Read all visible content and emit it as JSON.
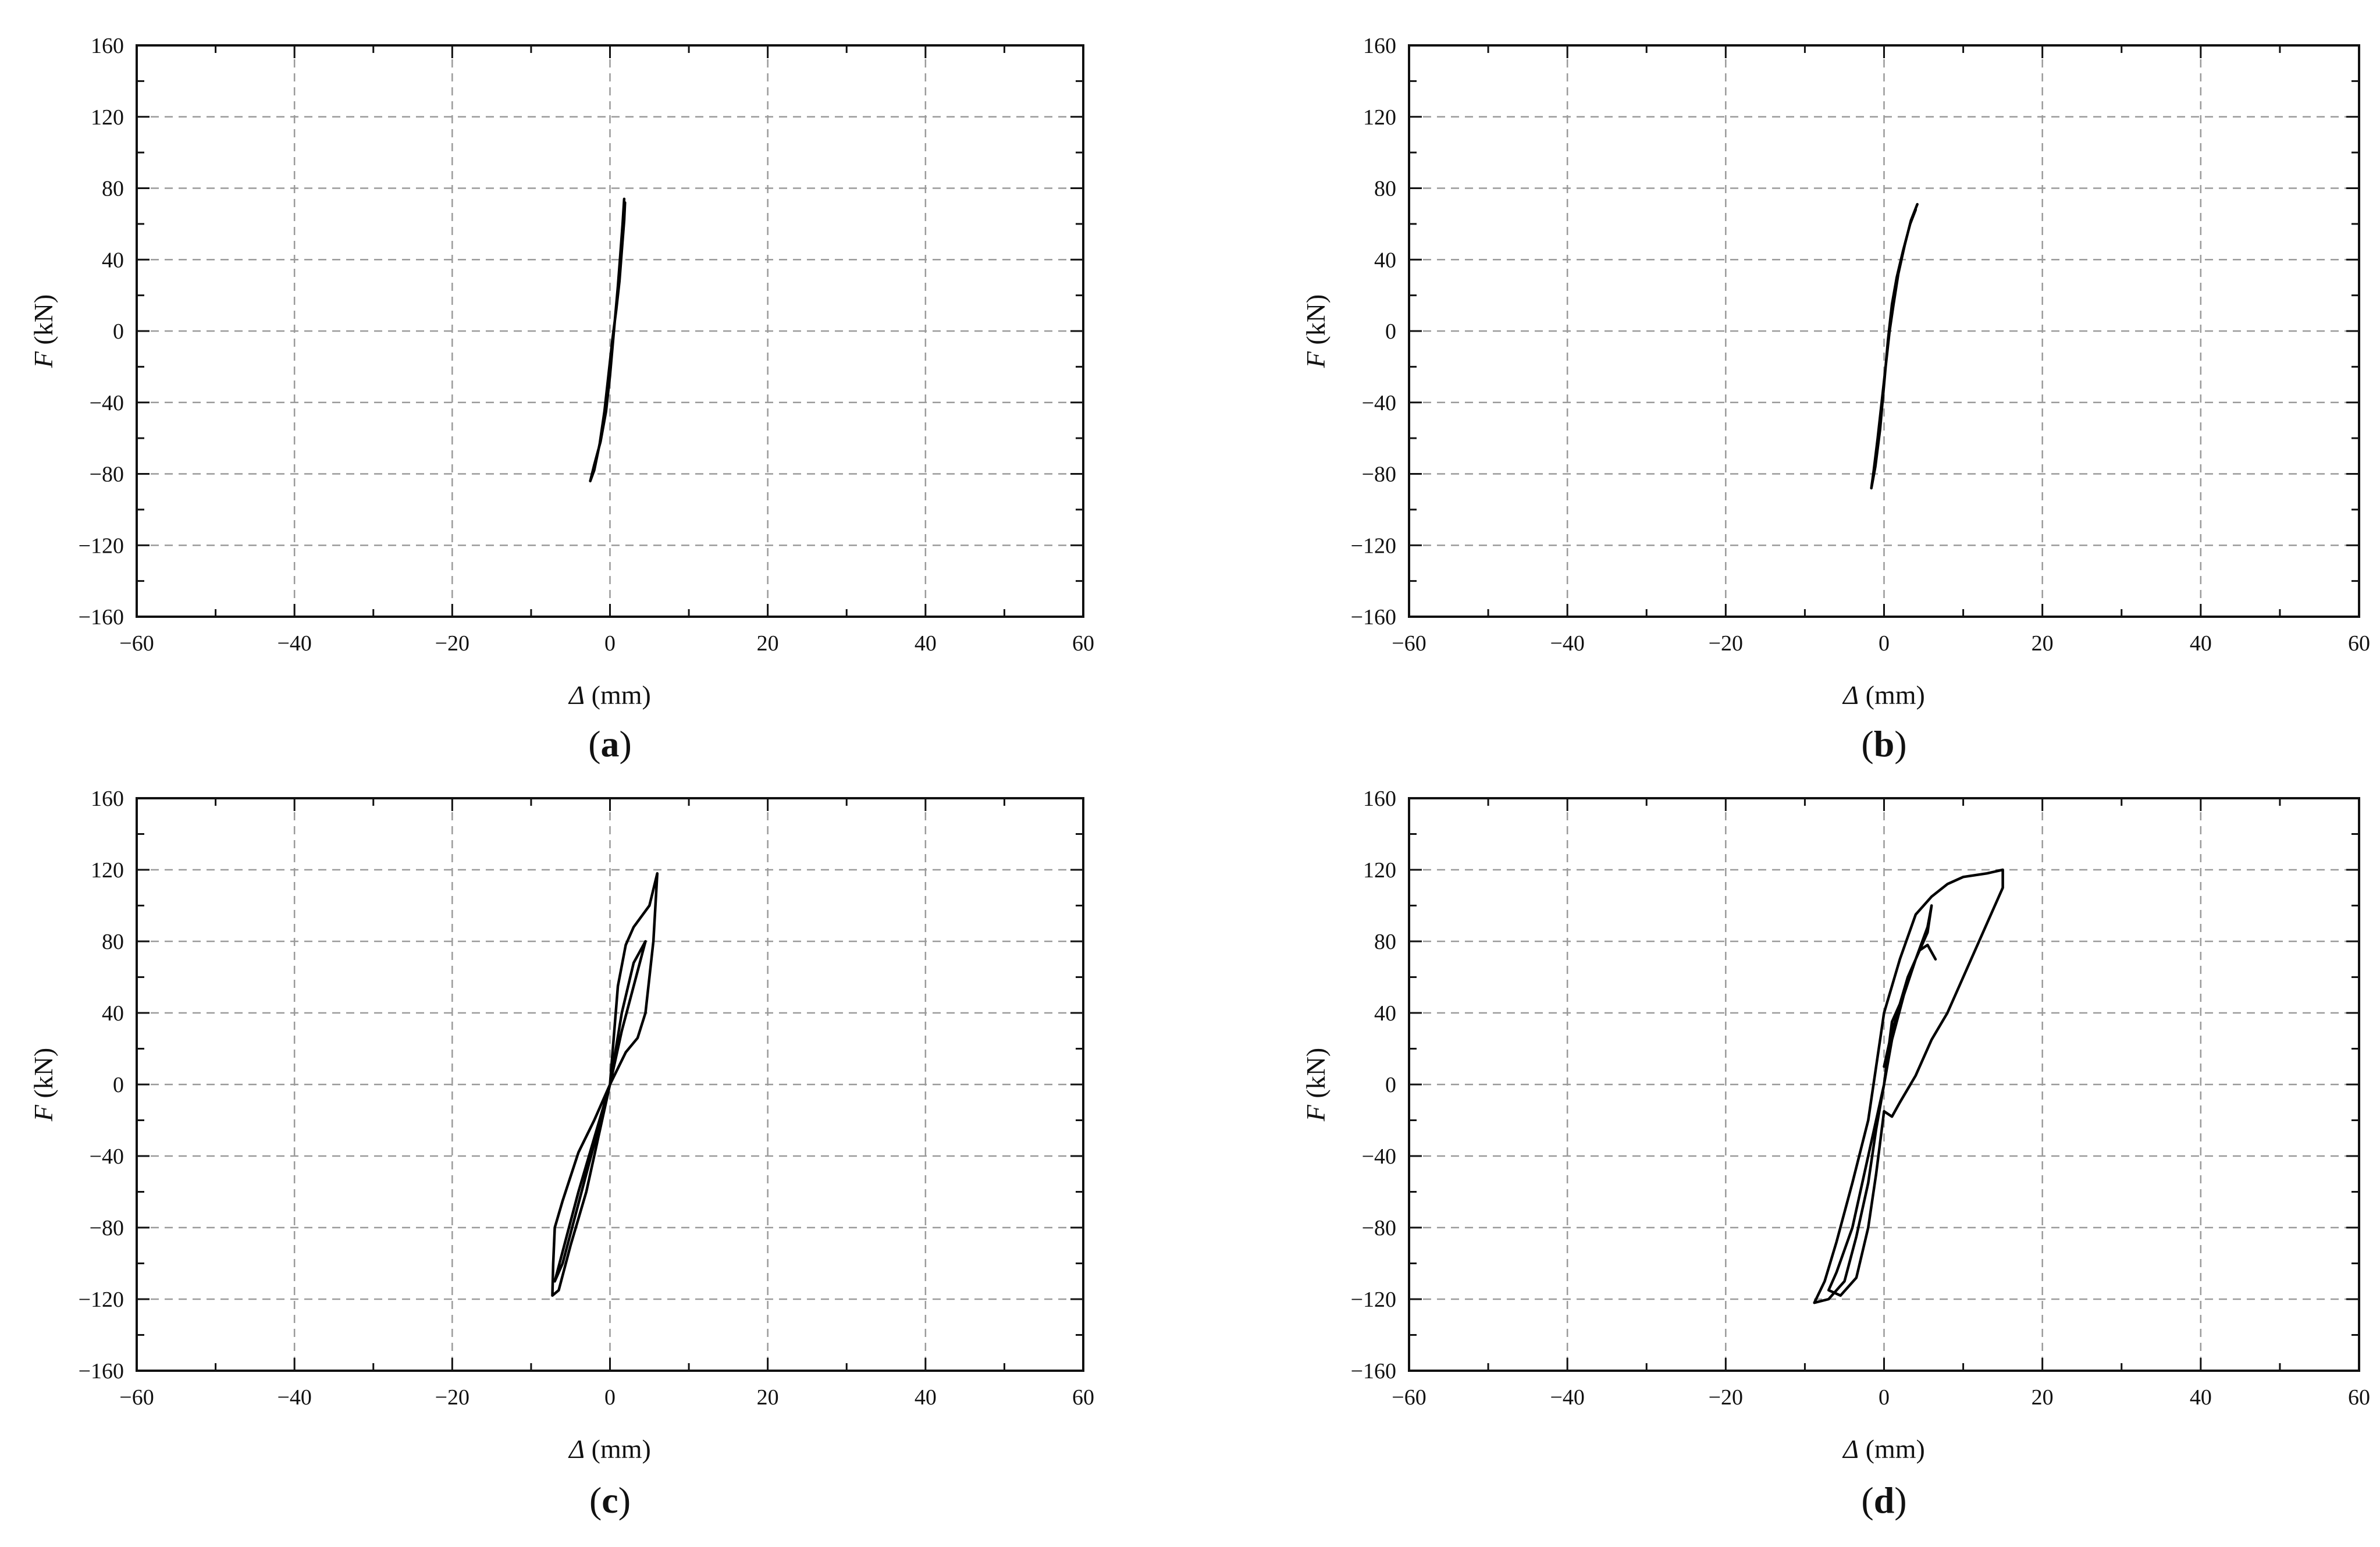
{
  "chart_data": [
    {
      "type": "line",
      "panel": "a",
      "panel_label": "a",
      "xlabel": "(mm)",
      "xlabel_symbol": "Δ",
      "ylabel": "(kN)",
      "ylabel_symbol": "F",
      "xlim": [
        -60,
        60
      ],
      "ylim": [
        -160,
        160
      ],
      "xticks": [
        "−60",
        "−40",
        "−20",
        "0",
        "20",
        "40",
        "60"
      ],
      "yticks": [
        "160",
        "120",
        "80",
        "40",
        "0",
        "−40",
        "−80",
        "−120",
        "−160"
      ],
      "grid": true,
      "series": [
        {
          "points": [
            [
              1.8,
              74
            ],
            [
              1.6,
              60
            ],
            [
              1.3,
              42
            ],
            [
              1.0,
              25
            ],
            [
              0.7,
              10
            ],
            [
              0.4,
              -5
            ],
            [
              0.0,
              -25
            ],
            [
              -0.5,
              -45
            ],
            [
              -1.2,
              -62
            ],
            [
              -2.0,
              -75
            ],
            [
              -2.5,
              -84
            ],
            [
              -2.0,
              -78
            ],
            [
              -1.3,
              -63
            ],
            [
              -0.7,
              -45
            ],
            [
              -0.2,
              -25
            ],
            [
              0.3,
              -5
            ],
            [
              0.8,
              12
            ],
            [
              1.2,
              28
            ],
            [
              1.5,
              45
            ],
            [
              1.8,
              62
            ],
            [
              1.9,
              72
            ]
          ]
        }
      ]
    },
    {
      "type": "line",
      "panel": "b",
      "panel_label": "b",
      "xlabel": "(mm)",
      "xlabel_symbol": "Δ",
      "ylabel": "(kN)",
      "ylabel_symbol": "F",
      "xlim": [
        -60,
        60
      ],
      "ylim": [
        -160,
        160
      ],
      "xticks": [
        "−60",
        "−40",
        "−20",
        "0",
        "20",
        "40",
        "60"
      ],
      "yticks": [
        "160",
        "120",
        "80",
        "40",
        "0",
        "−40",
        "−80",
        "−120",
        "−160"
      ],
      "grid": true,
      "series": [
        {
          "points": [
            [
              4.2,
              71
            ],
            [
              3.4,
              62
            ],
            [
              2.6,
              48
            ],
            [
              1.8,
              32
            ],
            [
              1.2,
              15
            ],
            [
              0.7,
              0
            ],
            [
              0.2,
              -20
            ],
            [
              -0.3,
              -40
            ],
            [
              -0.8,
              -60
            ],
            [
              -1.3,
              -78
            ],
            [
              -1.6,
              -88
            ],
            [
              -1.1,
              -76
            ],
            [
              -0.5,
              -55
            ],
            [
              0.0,
              -30
            ],
            [
              0.5,
              -5
            ],
            [
              1.0,
              15
            ],
            [
              1.6,
              30
            ],
            [
              2.4,
              45
            ],
            [
              3.3,
              60
            ],
            [
              4.0,
              68
            ]
          ]
        }
      ]
    },
    {
      "type": "line",
      "panel": "c",
      "panel_label": "c",
      "xlabel": "(mm)",
      "xlabel_symbol": "Δ",
      "ylabel": "(kN)",
      "ylabel_symbol": "F",
      "xlim": [
        -60,
        60
      ],
      "ylim": [
        -160,
        160
      ],
      "xticks": [
        "−60",
        "−40",
        "−20",
        "0",
        "20",
        "40",
        "60"
      ],
      "yticks": [
        "160",
        "120",
        "80",
        "40",
        "0",
        "−40",
        "−80",
        "−120",
        "−160"
      ],
      "grid": true,
      "series": [
        {
          "points": [
            [
              0,
              0
            ],
            [
              1.5,
              40
            ],
            [
              3.0,
              68
            ],
            [
              4.5,
              80
            ],
            [
              3.0,
              55
            ],
            [
              1.5,
              30
            ],
            [
              0,
              0
            ],
            [
              -2,
              -30
            ],
            [
              -4,
              -60
            ],
            [
              -5.5,
              -85
            ],
            [
              -7,
              -110
            ],
            [
              -6,
              -100
            ],
            [
              -4.5,
              -75
            ],
            [
              -3,
              -50
            ],
            [
              -1.5,
              -25
            ],
            [
              0,
              0
            ],
            [
              2,
              18
            ],
            [
              3.5,
              26
            ],
            [
              4.5,
              40
            ],
            [
              5,
              60
            ],
            [
              5.5,
              80
            ],
            [
              6,
              118
            ],
            [
              5,
              100
            ],
            [
              3,
              88
            ],
            [
              2,
              78
            ],
            [
              1,
              55
            ],
            [
              0,
              0
            ],
            [
              -2,
              -20
            ],
            [
              -4,
              -38
            ],
            [
              -6,
              -65
            ],
            [
              -7,
              -80
            ],
            [
              -7.2,
              -100
            ],
            [
              -7.3,
              -118
            ],
            [
              -6.5,
              -115
            ],
            [
              -5,
              -90
            ],
            [
              -3,
              -60
            ],
            [
              -1,
              -20
            ],
            [
              0,
              0
            ]
          ]
        }
      ]
    },
    {
      "type": "line",
      "panel": "d",
      "panel_label": "d",
      "xlabel": "(mm)",
      "xlabel_symbol": "Δ",
      "ylabel": "(kN)",
      "ylabel_symbol": "F",
      "xlim": [
        -60,
        60
      ],
      "ylim": [
        -160,
        160
      ],
      "xticks": [
        "−60",
        "−40",
        "−20",
        "0",
        "20",
        "40",
        "60"
      ],
      "yticks": [
        "160",
        "120",
        "80",
        "40",
        "0",
        "−40",
        "−80",
        "−120",
        "−160"
      ],
      "grid": true,
      "series": [
        {
          "points": [
            [
              6.5,
              70
            ],
            [
              5.5,
              78
            ],
            [
              4.5,
              75
            ],
            [
              3,
              60
            ],
            [
              2,
              45
            ],
            [
              1,
              35
            ],
            [
              0,
              0
            ],
            [
              -2,
              -40
            ],
            [
              -4,
              -80
            ],
            [
              -6,
              -105
            ],
            [
              -7,
              -115
            ],
            [
              -5.5,
              -118
            ],
            [
              -3.5,
              -108
            ],
            [
              -2,
              -80
            ],
            [
              -1,
              -50
            ],
            [
              0,
              -15
            ],
            [
              1,
              -18
            ],
            [
              2,
              -10
            ],
            [
              4,
              5
            ],
            [
              6,
              25
            ],
            [
              8,
              40
            ],
            [
              10,
              60
            ],
            [
              12,
              80
            ],
            [
              14,
              100
            ],
            [
              15,
              110
            ],
            [
              15,
              120
            ],
            [
              13,
              118
            ],
            [
              10,
              116
            ],
            [
              8,
              112
            ],
            [
              6,
              105
            ],
            [
              4,
              95
            ],
            [
              2,
              70
            ],
            [
              0,
              40
            ],
            [
              -1,
              10
            ],
            [
              -2,
              -20
            ],
            [
              -4,
              -55
            ],
            [
              -6,
              -88
            ],
            [
              -7.5,
              -110
            ],
            [
              -8.8,
              -122
            ],
            [
              -7,
              -120
            ],
            [
              -5,
              -110
            ],
            [
              -3.5,
              -85
            ],
            [
              -2,
              -55
            ],
            [
              -1,
              -25
            ],
            [
              0,
              0
            ],
            [
              1,
              25
            ],
            [
              2.5,
              50
            ],
            [
              4,
              70
            ],
            [
              5.5,
              85
            ],
            [
              6,
              100
            ],
            [
              5.5,
              88
            ],
            [
              4,
              70
            ],
            [
              2.5,
              50
            ],
            [
              1,
              30
            ],
            [
              0,
              10
            ]
          ]
        }
      ]
    }
  ]
}
